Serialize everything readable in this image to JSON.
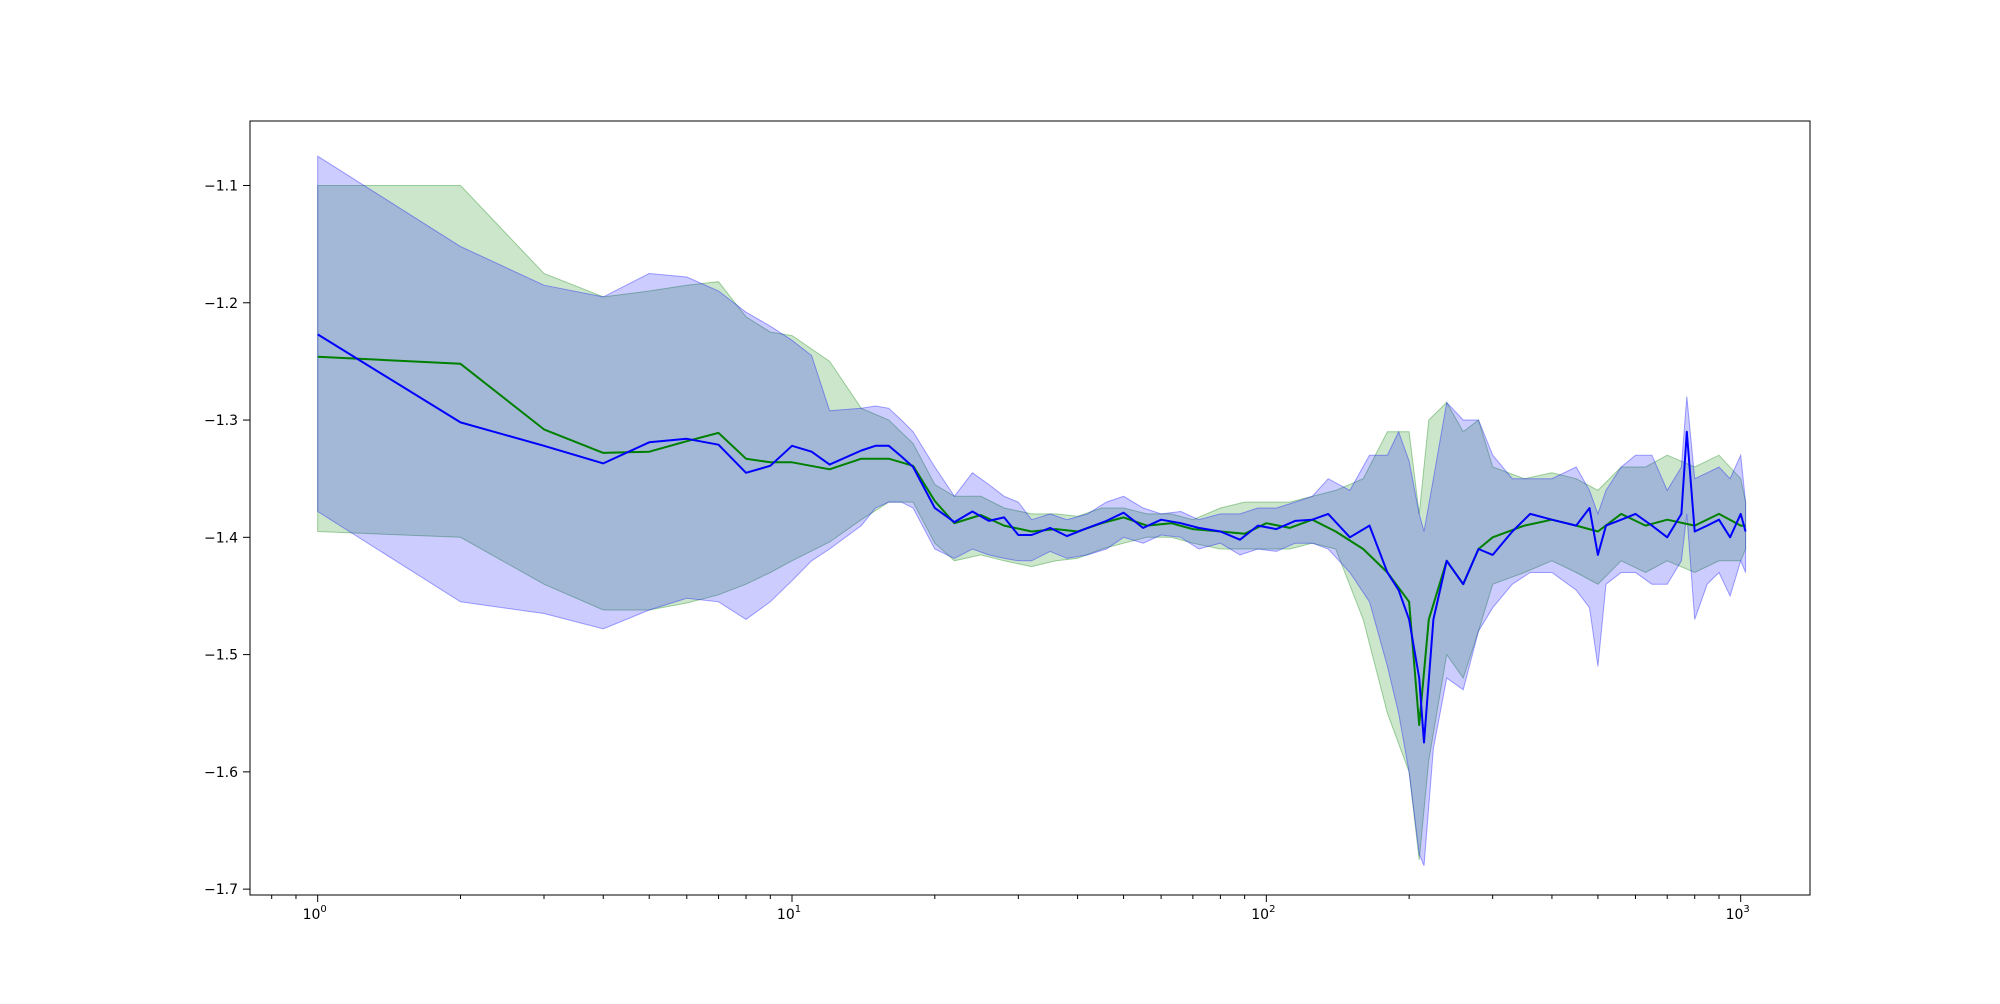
{
  "chart_data": {
    "type": "line",
    "title": "",
    "xlabel": "",
    "ylabel": "",
    "xscale": "log",
    "xlim": [
      0.72,
      1400
    ],
    "ylim": [
      -1.705,
      -1.045
    ],
    "grid": false,
    "legend": "none",
    "x_ticks": [
      {
        "base": "10",
        "exp": "0",
        "value": 1
      },
      {
        "base": "10",
        "exp": "1",
        "value": 10
      },
      {
        "base": "10",
        "exp": "2",
        "value": 100
      },
      {
        "base": "10",
        "exp": "3",
        "value": 1000
      }
    ],
    "y_ticks": [
      {
        "label": "−1.1",
        "value": -1.1
      },
      {
        "label": "−1.2",
        "value": -1.2
      },
      {
        "label": "−1.3",
        "value": -1.3
      },
      {
        "label": "−1.4",
        "value": -1.4
      },
      {
        "label": "−1.5",
        "value": -1.5
      },
      {
        "label": "−1.6",
        "value": -1.6
      },
      {
        "label": "−1.7",
        "value": -1.7
      }
    ],
    "series": [
      {
        "color": "#008000",
        "band_color": "#008000",
        "band_opacity": 0.2,
        "x": [
          1,
          2,
          3,
          4,
          5,
          6,
          7,
          8,
          9,
          10,
          12,
          14,
          16,
          18,
          20,
          22,
          25,
          28,
          32,
          36,
          40,
          45,
          50,
          56,
          63,
          70,
          80,
          90,
          100,
          112,
          125,
          140,
          160,
          180,
          200,
          210,
          220,
          240,
          260,
          280,
          300,
          350,
          400,
          450,
          500,
          560,
          630,
          700,
          800,
          900,
          1000,
          1024
        ],
        "values": [
          -1.246,
          -1.252,
          -1.308,
          -1.328,
          -1.327,
          -1.318,
          -1.311,
          -1.333,
          -1.336,
          -1.336,
          -1.342,
          -1.333,
          -1.333,
          -1.339,
          -1.369,
          -1.388,
          -1.381,
          -1.39,
          -1.395,
          -1.393,
          -1.395,
          -1.388,
          -1.383,
          -1.39,
          -1.388,
          -1.393,
          -1.395,
          -1.397,
          -1.388,
          -1.392,
          -1.385,
          -1.395,
          -1.41,
          -1.43,
          -1.455,
          -1.56,
          -1.47,
          -1.42,
          -1.44,
          -1.41,
          -1.4,
          -1.39,
          -1.385,
          -1.39,
          -1.395,
          -1.38,
          -1.39,
          -1.385,
          -1.39,
          -1.38,
          -1.39,
          -1.39
        ],
        "upper": [
          -1.1,
          -1.1,
          -1.175,
          -1.195,
          -1.19,
          -1.185,
          -1.182,
          -1.212,
          -1.225,
          -1.228,
          -1.25,
          -1.29,
          -1.3,
          -1.32,
          -1.355,
          -1.365,
          -1.365,
          -1.375,
          -1.38,
          -1.38,
          -1.382,
          -1.375,
          -1.375,
          -1.38,
          -1.38,
          -1.385,
          -1.375,
          -1.37,
          -1.37,
          -1.37,
          -1.365,
          -1.36,
          -1.35,
          -1.31,
          -1.31,
          -1.38,
          -1.3,
          -1.285,
          -1.31,
          -1.3,
          -1.34,
          -1.35,
          -1.345,
          -1.35,
          -1.36,
          -1.34,
          -1.34,
          -1.33,
          -1.34,
          -1.33,
          -1.35,
          -1.37
        ],
        "lower": [
          -1.395,
          -1.4,
          -1.44,
          -1.462,
          -1.462,
          -1.456,
          -1.449,
          -1.44,
          -1.43,
          -1.42,
          -1.404,
          -1.385,
          -1.37,
          -1.37,
          -1.405,
          -1.42,
          -1.415,
          -1.42,
          -1.425,
          -1.42,
          -1.418,
          -1.41,
          -1.405,
          -1.4,
          -1.4,
          -1.405,
          -1.41,
          -1.41,
          -1.41,
          -1.41,
          -1.405,
          -1.41,
          -1.47,
          -1.55,
          -1.6,
          -1.675,
          -1.59,
          -1.5,
          -1.52,
          -1.48,
          -1.44,
          -1.43,
          -1.42,
          -1.43,
          -1.44,
          -1.42,
          -1.43,
          -1.42,
          -1.43,
          -1.42,
          -1.42,
          -1.41
        ]
      },
      {
        "color": "#0000ff",
        "band_color": "#0000ff",
        "band_opacity": 0.2,
        "x": [
          1,
          2,
          3,
          4,
          5,
          6,
          7,
          8,
          9,
          10,
          11,
          12,
          14,
          15,
          16,
          17,
          18,
          20,
          22,
          24,
          26,
          28,
          30,
          32,
          35,
          38,
          42,
          46,
          50,
          55,
          60,
          66,
          72,
          80,
          88,
          96,
          105,
          115,
          125,
          135,
          150,
          165,
          180,
          190,
          200,
          210,
          215,
          225,
          240,
          260,
          280,
          300,
          330,
          360,
          400,
          450,
          480,
          500,
          520,
          560,
          600,
          650,
          700,
          750,
          770,
          800,
          850,
          900,
          950,
          1000,
          1024
        ],
        "values": [
          -1.227,
          -1.302,
          -1.322,
          -1.337,
          -1.319,
          -1.316,
          -1.321,
          -1.345,
          -1.339,
          -1.322,
          -1.327,
          -1.338,
          -1.326,
          -1.322,
          -1.322,
          -1.331,
          -1.34,
          -1.375,
          -1.387,
          -1.378,
          -1.386,
          -1.383,
          -1.398,
          -1.398,
          -1.392,
          -1.399,
          -1.392,
          -1.386,
          -1.379,
          -1.392,
          -1.385,
          -1.388,
          -1.392,
          -1.395,
          -1.402,
          -1.39,
          -1.393,
          -1.386,
          -1.385,
          -1.38,
          -1.4,
          -1.39,
          -1.43,
          -1.445,
          -1.47,
          -1.52,
          -1.575,
          -1.47,
          -1.42,
          -1.44,
          -1.41,
          -1.415,
          -1.395,
          -1.38,
          -1.385,
          -1.39,
          -1.375,
          -1.415,
          -1.39,
          -1.385,
          -1.38,
          -1.39,
          -1.4,
          -1.38,
          -1.31,
          -1.395,
          -1.39,
          -1.385,
          -1.4,
          -1.38,
          -1.395
        ],
        "upper": [
          -1.075,
          -1.152,
          -1.185,
          -1.195,
          -1.175,
          -1.178,
          -1.19,
          -1.208,
          -1.22,
          -1.232,
          -1.245,
          -1.292,
          -1.29,
          -1.288,
          -1.29,
          -1.3,
          -1.31,
          -1.34,
          -1.365,
          -1.345,
          -1.355,
          -1.365,
          -1.37,
          -1.385,
          -1.38,
          -1.385,
          -1.38,
          -1.37,
          -1.365,
          -1.375,
          -1.38,
          -1.378,
          -1.385,
          -1.38,
          -1.38,
          -1.375,
          -1.375,
          -1.37,
          -1.365,
          -1.35,
          -1.36,
          -1.33,
          -1.33,
          -1.31,
          -1.335,
          -1.38,
          -1.395,
          -1.35,
          -1.285,
          -1.3,
          -1.3,
          -1.33,
          -1.35,
          -1.35,
          -1.35,
          -1.34,
          -1.36,
          -1.38,
          -1.36,
          -1.34,
          -1.33,
          -1.33,
          -1.36,
          -1.34,
          -1.28,
          -1.35,
          -1.345,
          -1.34,
          -1.35,
          -1.33,
          -1.37
        ],
        "lower": [
          -1.378,
          -1.455,
          -1.465,
          -1.478,
          -1.462,
          -1.452,
          -1.455,
          -1.47,
          -1.455,
          -1.437,
          -1.42,
          -1.41,
          -1.39,
          -1.375,
          -1.37,
          -1.37,
          -1.375,
          -1.41,
          -1.418,
          -1.41,
          -1.415,
          -1.418,
          -1.42,
          -1.42,
          -1.412,
          -1.418,
          -1.415,
          -1.41,
          -1.4,
          -1.405,
          -1.398,
          -1.4,
          -1.41,
          -1.405,
          -1.415,
          -1.41,
          -1.412,
          -1.405,
          -1.405,
          -1.41,
          -1.43,
          -1.455,
          -1.51,
          -1.55,
          -1.6,
          -1.67,
          -1.68,
          -1.58,
          -1.52,
          -1.53,
          -1.48,
          -1.46,
          -1.44,
          -1.43,
          -1.43,
          -1.445,
          -1.46,
          -1.51,
          -1.44,
          -1.43,
          -1.43,
          -1.44,
          -1.44,
          -1.42,
          -1.38,
          -1.47,
          -1.44,
          -1.43,
          -1.45,
          -1.42,
          -1.43
        ]
      }
    ]
  }
}
